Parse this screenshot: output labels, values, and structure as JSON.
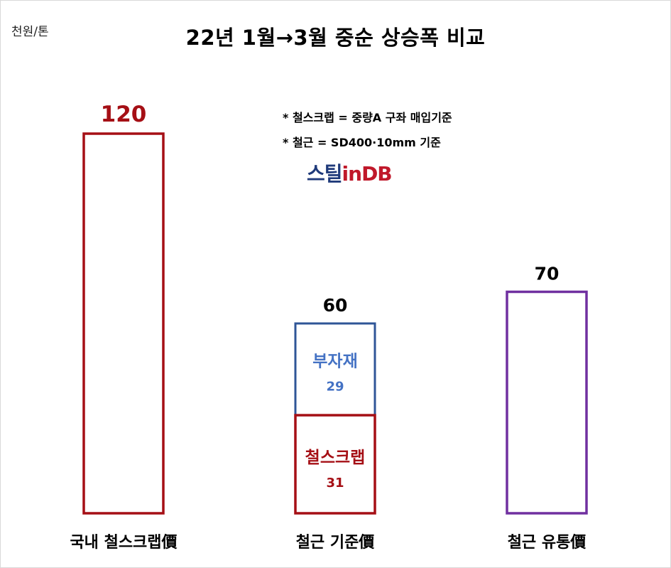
{
  "unit_label": "천원/톤",
  "title": "22년 1월→3월 중순 상승폭 비교",
  "notes": [
    "* 철스크랩 = 중량A 구좌 매입기준",
    "* 철근 = SD400·10mm 기준"
  ],
  "logo": {
    "part1": "스틸",
    "part2": "in",
    "part3": "DB"
  },
  "colors": {
    "scrap": "#a50f15",
    "rebar": "#2f5597",
    "distribution": "#7030a0",
    "sub_label": "#4472c4"
  },
  "chart_data": {
    "type": "bar",
    "categories": [
      "국내 철스크랩價",
      "철근 기준價",
      "철근 유통價"
    ],
    "totals": [
      120,
      60,
      70
    ],
    "series": [
      {
        "name": "철스크랩",
        "values": [
          120,
          31,
          0
        ]
      },
      {
        "name": "부자재",
        "values": [
          0,
          29,
          0
        ]
      },
      {
        "name": "",
        "values": [
          0,
          0,
          70
        ]
      }
    ],
    "segment_labels": [
      {
        "category_index": 1,
        "label": "부자재",
        "value": 29
      },
      {
        "category_index": 1,
        "label": "철스크랩",
        "value": 31
      }
    ],
    "ylim": [
      0,
      120
    ],
    "grid": false
  }
}
